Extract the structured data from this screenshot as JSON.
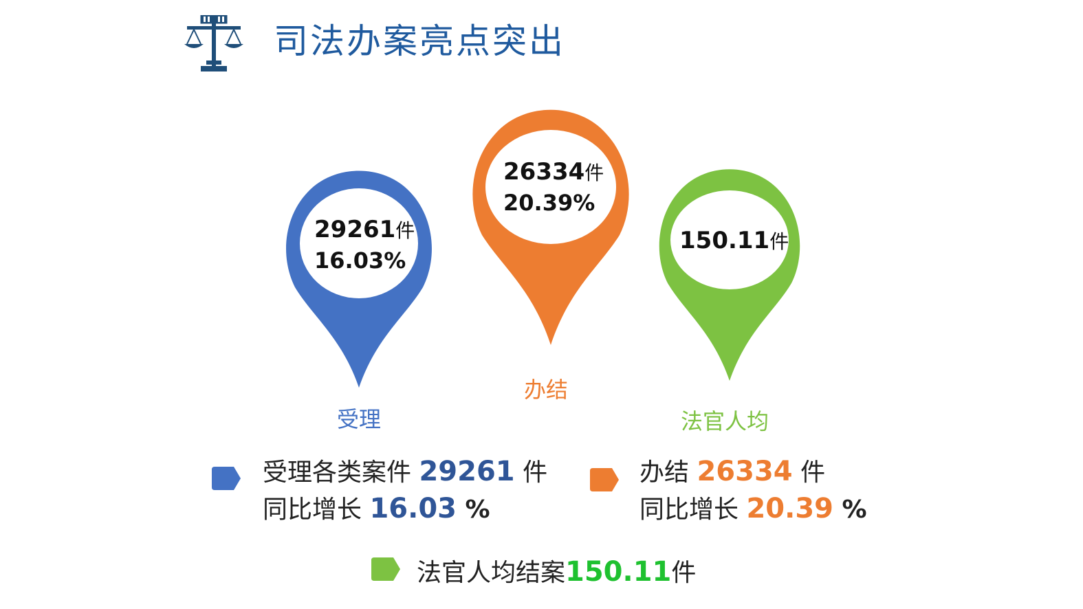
{
  "title": "司法办案亮点突出",
  "colors": {
    "blue": "#4472c4",
    "orange": "#ed7d31",
    "green": "#7dc242",
    "title_blue": "#1f5a9e",
    "blue_value": "#2f5597",
    "orange_value": "#ed7d31",
    "green_value": "#1ec12f"
  },
  "pins": [
    {
      "key": "accept",
      "value": "29261",
      "unit": "件",
      "percent": "16.03%",
      "label": "受理"
    },
    {
      "key": "closed",
      "value": "26334",
      "unit": "件",
      "percent": "20.39%",
      "label": "办结"
    },
    {
      "key": "judge",
      "value": "150.11",
      "unit": "件",
      "label": "法官人均"
    }
  ],
  "legend": {
    "accept": {
      "line1_prefix": "受理各类案件 ",
      "line1_value": "29261",
      "line1_suffix": " 件",
      "line2_prefix": "同比增长 ",
      "line2_value": "16.03",
      "line2_suffix": " %"
    },
    "closed": {
      "line1_prefix": "办结 ",
      "line1_value": "26334",
      "line1_suffix": " 件",
      "line2_prefix": "同比增长 ",
      "line2_value": "20.39",
      "line2_suffix": " %"
    },
    "judge": {
      "prefix": "法官人均结案",
      "value": "150.11",
      "suffix": "件"
    }
  },
  "icons": {
    "logo": "scales-of-justice-icon",
    "legend_marker": "tag-arrow-icon"
  }
}
